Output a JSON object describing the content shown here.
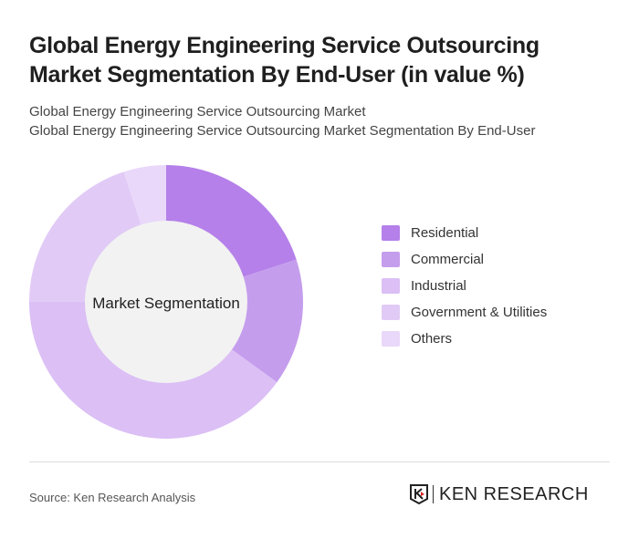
{
  "title": "Global Energy Engineering Service Outsourcing Market Segmentation By End-User (in value %)",
  "subtitle1": "Global Energy Engineering Service Outsourcing Market",
  "subtitle2": "Global Energy Engineering Service Outsourcing Market Segmentation By End-User",
  "source": "Source: Ken Research Analysis",
  "logo_text": "KEN RESEARCH",
  "chart_data": {
    "type": "pie",
    "variant": "donut",
    "center_label": "Market Segmentation",
    "categories": [
      "Residential",
      "Commercial",
      "Industrial",
      "Government & Utilities",
      "Others"
    ],
    "values": [
      20,
      15,
      40,
      20,
      5
    ],
    "colors": [
      "#b580e9",
      "#c59ded",
      "#dbbff5",
      "#e1cbf6",
      "#e9d8f9"
    ],
    "legend_position": "right"
  }
}
